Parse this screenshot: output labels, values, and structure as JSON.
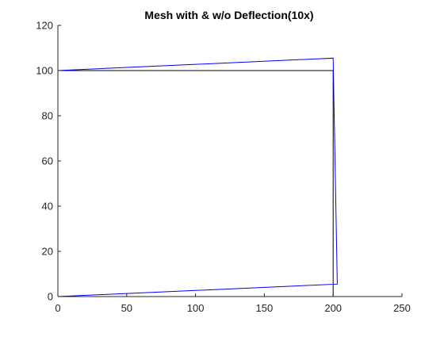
{
  "chart_data": {
    "type": "line",
    "title": "Mesh with & w/o Deflection(10x)",
    "xlabel": "",
    "ylabel": "",
    "xlim": [
      0,
      250
    ],
    "ylim": [
      0,
      120
    ],
    "xticks": [
      0,
      50,
      100,
      150,
      200,
      250
    ],
    "yticks": [
      0,
      20,
      40,
      60,
      80,
      100,
      120
    ],
    "grid": false,
    "legend": "none",
    "series": [
      {
        "x": [
          0,
          200,
          200,
          0,
          0
        ],
        "y": [
          0,
          0,
          100,
          100,
          0
        ],
        "color": "#000000"
      },
      {
        "x": [
          0,
          203,
          200,
          0,
          0
        ],
        "y": [
          0,
          5.5,
          105.5,
          100,
          0
        ],
        "color": "#0000ff"
      }
    ]
  }
}
